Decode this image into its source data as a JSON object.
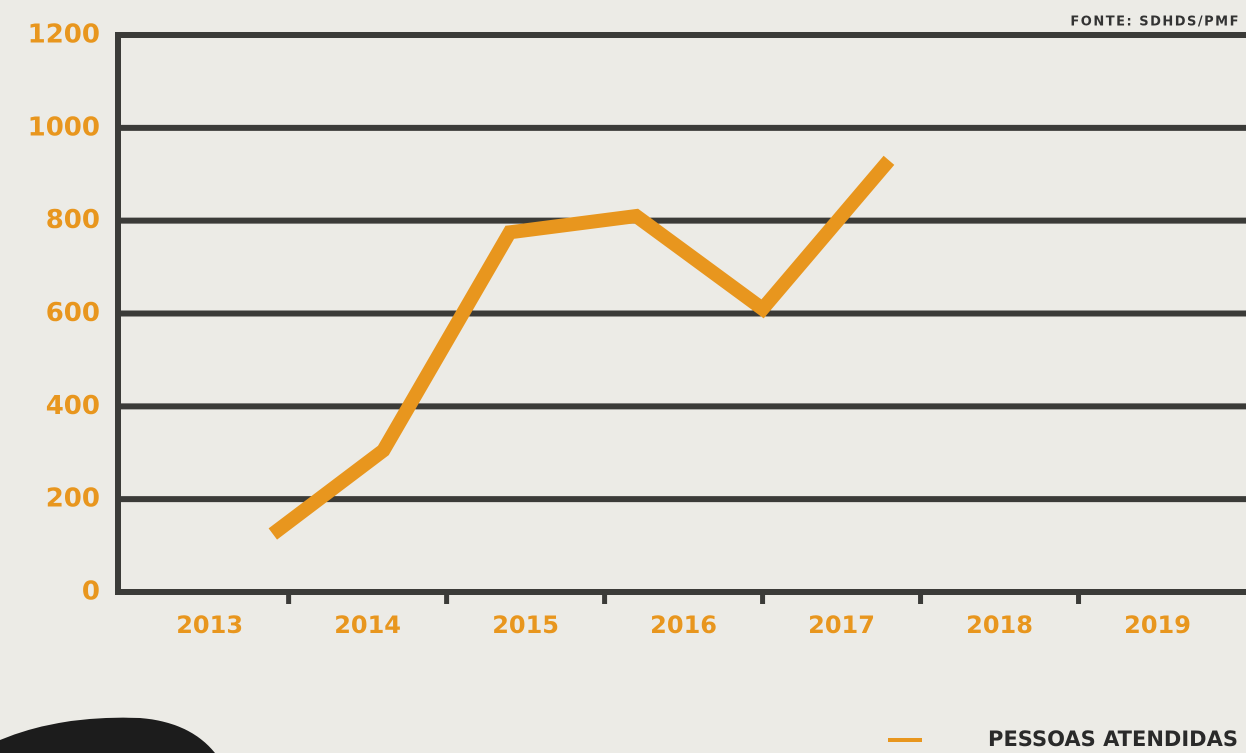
{
  "chart_data": {
    "type": "line",
    "source": "FONTE: SDHDS/PMF",
    "series": [
      {
        "name": "PESSOAS ATENDIDAS",
        "color": "#e8961e",
        "x": [
          2013.4,
          2014.1,
          2014.9,
          2015.7,
          2016.5,
          2017.3
        ],
        "values": [
          125,
          305,
          775,
          810,
          610,
          930
        ]
      }
    ],
    "xlim": [
      2012.42,
      2019.56
    ],
    "xticks": [
      2013,
      2014,
      2015,
      2016,
      2017,
      2018,
      2019
    ],
    "ylim": [
      0,
      1200
    ],
    "yticks": [
      0,
      200,
      400,
      600,
      800,
      1000,
      1200
    ],
    "grid": true,
    "legend": "bottom-right"
  }
}
